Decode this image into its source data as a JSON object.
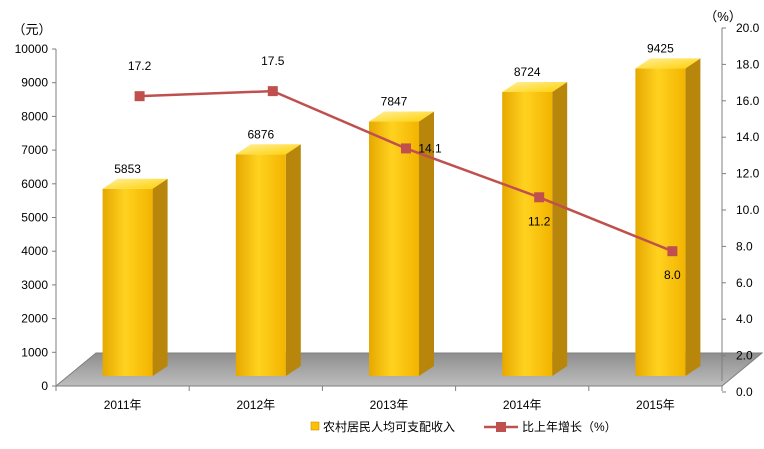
{
  "chart_data": {
    "type": "bar",
    "categories": [
      "2011年",
      "2012年",
      "2013年",
      "2014年",
      "2015年"
    ],
    "series": [
      {
        "name": "农村居民人均可支配收入",
        "type": "bar",
        "axis": "left",
        "values": [
          5853,
          6876,
          7847,
          8724,
          9425
        ],
        "labels": [
          "5853",
          "6876",
          "7847",
          "8724",
          "9425"
        ],
        "color": "#FFC000"
      },
      {
        "name": "比上年增长（%）",
        "type": "line",
        "axis": "right",
        "values": [
          17.2,
          17.5,
          14.1,
          11.2,
          8.0
        ],
        "labels": [
          "17.2",
          "17.5",
          "14.1",
          "11.2",
          "8.0"
        ],
        "color": "#C0504D"
      }
    ],
    "y_left": {
      "unit": "（元）",
      "ylim": [
        0,
        10000
      ],
      "ticks": [
        "0",
        "1000",
        "2000",
        "3000",
        "4000",
        "5000",
        "6000",
        "7000",
        "8000",
        "9000",
        "10000"
      ]
    },
    "y_right": {
      "unit": "（%）",
      "ylim": [
        0,
        20
      ],
      "ticks": [
        "0.0",
        "2.0",
        "4.0",
        "6.0",
        "8.0",
        "10.0",
        "12.0",
        "14.0",
        "16.0",
        "18.0",
        "20.0"
      ]
    },
    "legend_position": "bottom-right",
    "grid": false,
    "colors": {
      "bar": "#FFC000",
      "bar_side": "#B8860B",
      "line": "#C0504D",
      "floor": "#A6A6A6"
    }
  }
}
